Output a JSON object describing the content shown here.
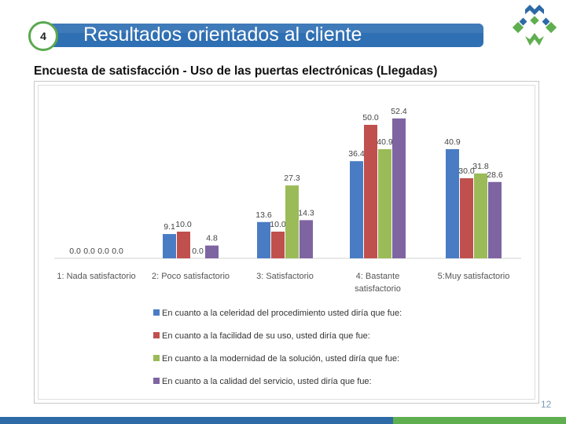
{
  "header": {
    "section_number": "4",
    "title": "Resultados orientados al cliente"
  },
  "subtitle": "Encuesta de satisfacción - Uso de las puertas electrónicas (Llegadas)",
  "slide_number": "12",
  "colors": {
    "title_bar": "#2f6fb3",
    "series": [
      "#4a7cc4",
      "#c0504d",
      "#9bbb59",
      "#7f64a2"
    ],
    "logo_blue": "#2d6aa6",
    "logo_green": "#5fae4f"
  },
  "chart_data": {
    "type": "bar",
    "title": "",
    "xlabel": "",
    "ylabel": "",
    "ylim": [
      0,
      55
    ],
    "grid": false,
    "legend_placement": "bottom",
    "categories": [
      "1: Nada satisfactorio",
      "2: Poco satisfactorio",
      "3: Satisfactorio",
      "4: Bastante satisfactorio",
      "5:Muy satisfactorio"
    ],
    "category_lines": [
      [
        "1: Nada satisfactorio"
      ],
      [
        "2: Poco satisfactorio"
      ],
      [
        "3: Satisfactorio"
      ],
      [
        "4: Bastante",
        "satisfactorio"
      ],
      [
        "5:Muy satisfactorio"
      ]
    ],
    "series": [
      {
        "name": "En cuanto a la celeridad del procedimiento usted diría que fue:",
        "values": [
          0.0,
          9.1,
          13.6,
          36.4,
          40.9
        ],
        "labels": [
          "0.0",
          "9.1",
          "13.6",
          "36.4",
          "40.9"
        ]
      },
      {
        "name": "En cuanto a la facilidad de su uso, usted diría que fue:",
        "values": [
          0.0,
          10.0,
          10.0,
          50.0,
          30.0
        ],
        "labels": [
          "0.0",
          "10.0",
          "10.0",
          "50.0",
          "30.0"
        ]
      },
      {
        "name": "En cuanto a la modernidad de la solución, usted diría que fue:",
        "values": [
          0.0,
          0.0,
          27.3,
          40.9,
          31.8
        ],
        "labels": [
          "0.0",
          "0.0",
          "27.3",
          "40.9",
          "31.8"
        ]
      },
      {
        "name": "En cuanto a la calidad del servicio, usted diría que fue:",
        "values": [
          0.0,
          4.8,
          14.3,
          52.4,
          28.6
        ],
        "labels": [
          "0.0",
          "4.8",
          "14.3",
          "52.4",
          "28.6"
        ]
      }
    ]
  }
}
